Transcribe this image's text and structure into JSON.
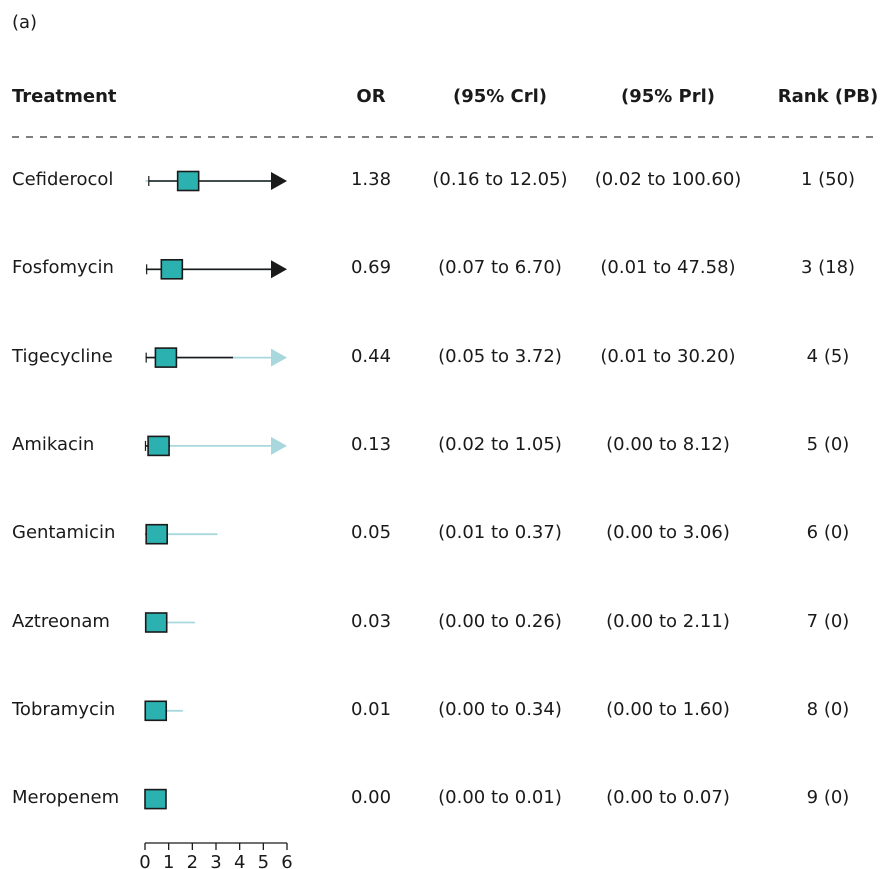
{
  "panel_label": "(a)",
  "colors": {
    "box": "#2bb2b0",
    "ci": "#1a1a1a",
    "pi": "#a8d8dd"
  },
  "chart_data": {
    "type": "forest",
    "columns": [
      "Treatment",
      "OR",
      "(95% Crl)",
      "(95% Prl)",
      "Rank (PB)"
    ],
    "x_ticks": [
      "0",
      "1",
      "2",
      "3",
      "4",
      "5",
      "6"
    ],
    "xlim": [
      0,
      6
    ],
    "rows": [
      {
        "treatment": "Cefiderocol",
        "or": "1.38",
        "crl": "(0.16 to 12.05)",
        "prl": "(0.02 to 100.60)",
        "rank": "1 (50)",
        "or_value": 1.38,
        "crl_low": 0.16,
        "crl_high": 12.05,
        "prl_low": 0.02,
        "prl_high": 100.6
      },
      {
        "treatment": "Fosfomycin",
        "or": "0.69",
        "crl": "(0.07 to 6.70)",
        "prl": "(0.01 to 47.58)",
        "rank": "3 (18)",
        "or_value": 0.69,
        "crl_low": 0.07,
        "crl_high": 6.7,
        "prl_low": 0.01,
        "prl_high": 47.58
      },
      {
        "treatment": "Tigecycline",
        "or": "0.44",
        "crl": "(0.05 to 3.72)",
        "prl": "(0.01 to 30.20)",
        "rank": "4 (5)",
        "or_value": 0.44,
        "crl_low": 0.05,
        "crl_high": 3.72,
        "prl_low": 0.01,
        "prl_high": 30.2
      },
      {
        "treatment": "Amikacin",
        "or": "0.13",
        "crl": "(0.02 to 1.05)",
        "prl": "(0.00 to 8.12)",
        "rank": "5 (0)",
        "or_value": 0.13,
        "crl_low": 0.02,
        "crl_high": 1.05,
        "prl_low": 0.0,
        "prl_high": 8.12
      },
      {
        "treatment": "Gentamicin",
        "or": "0.05",
        "crl": "(0.01 to 0.37)",
        "prl": "(0.00 to 3.06)",
        "rank": "6 (0)",
        "or_value": 0.05,
        "crl_low": 0.01,
        "crl_high": 0.37,
        "prl_low": 0.0,
        "prl_high": 3.06
      },
      {
        "treatment": "Aztreonam",
        "or": "0.03",
        "crl": "(0.00 to 0.26)",
        "prl": "(0.00 to 2.11)",
        "rank": "7 (0)",
        "or_value": 0.03,
        "crl_low": 0.0,
        "crl_high": 0.26,
        "prl_low": 0.0,
        "prl_high": 2.11
      },
      {
        "treatment": "Tobramycin",
        "or": "0.01",
        "crl": "(0.00 to 0.34)",
        "prl": "(0.00 to 1.60)",
        "rank": "8 (0)",
        "or_value": 0.01,
        "crl_low": 0.0,
        "crl_high": 0.34,
        "prl_low": 0.0,
        "prl_high": 1.6
      },
      {
        "treatment": "Meropenem",
        "or": "0.00",
        "crl": "(0.00 to 0.01)",
        "prl": "(0.00 to 0.07)",
        "rank": "9 (0)",
        "or_value": 0.0,
        "crl_low": 0.0,
        "crl_high": 0.01,
        "prl_low": 0.0,
        "prl_high": 0.07
      }
    ]
  }
}
